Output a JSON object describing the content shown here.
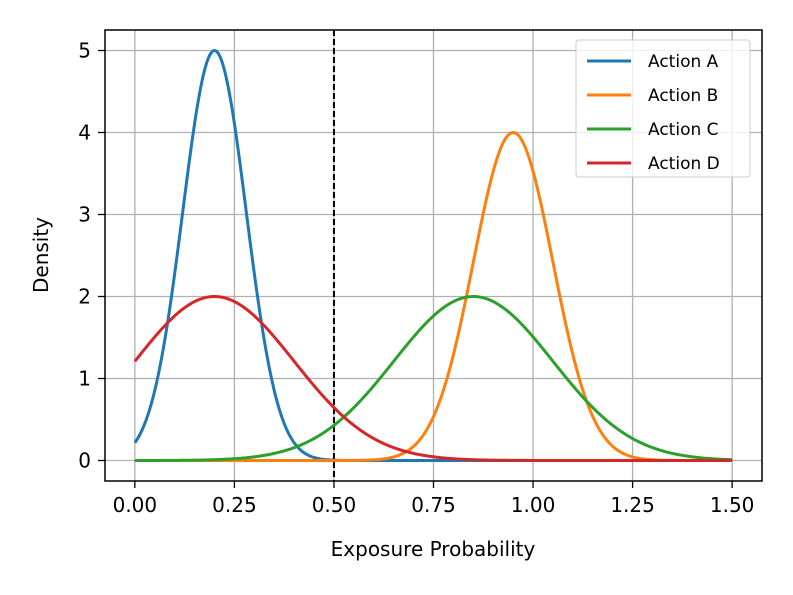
{
  "chart_data": {
    "type": "line",
    "title": "",
    "xlabel": "Exposure Probability",
    "ylabel": "Density",
    "xlim": [
      -0.075,
      1.575
    ],
    "ylim": [
      -0.25,
      5.25
    ],
    "xticks": [
      "0.00",
      "0.25",
      "0.50",
      "0.75",
      "1.00",
      "1.25",
      "1.50"
    ],
    "xtick_values": [
      0,
      0.25,
      0.5,
      0.75,
      1.0,
      1.25,
      1.5
    ],
    "yticks": [
      "0",
      "1",
      "2",
      "3",
      "4",
      "5"
    ],
    "ytick_values": [
      0,
      1,
      2,
      3,
      4,
      5
    ],
    "grid": true,
    "legend_position": "top-right",
    "reference_line": {
      "x": 0.5,
      "style": "dashed",
      "color": "#000000"
    },
    "x_domain": [
      0,
      1.5
    ],
    "series": [
      {
        "name": "Action A",
        "color": "#1f77b4",
        "distribution": "normal",
        "mean": 0.2,
        "peak_density": 5.0
      },
      {
        "name": "Action B",
        "color": "#ff7f0e",
        "distribution": "normal",
        "mean": 0.95,
        "peak_density": 4.0
      },
      {
        "name": "Action C",
        "color": "#2ca02c",
        "distribution": "normal",
        "mean": 0.85,
        "peak_density": 2.0
      },
      {
        "name": "Action D",
        "color": "#d62728",
        "distribution": "normal",
        "mean": 0.2,
        "peak_density": 2.0
      }
    ]
  }
}
